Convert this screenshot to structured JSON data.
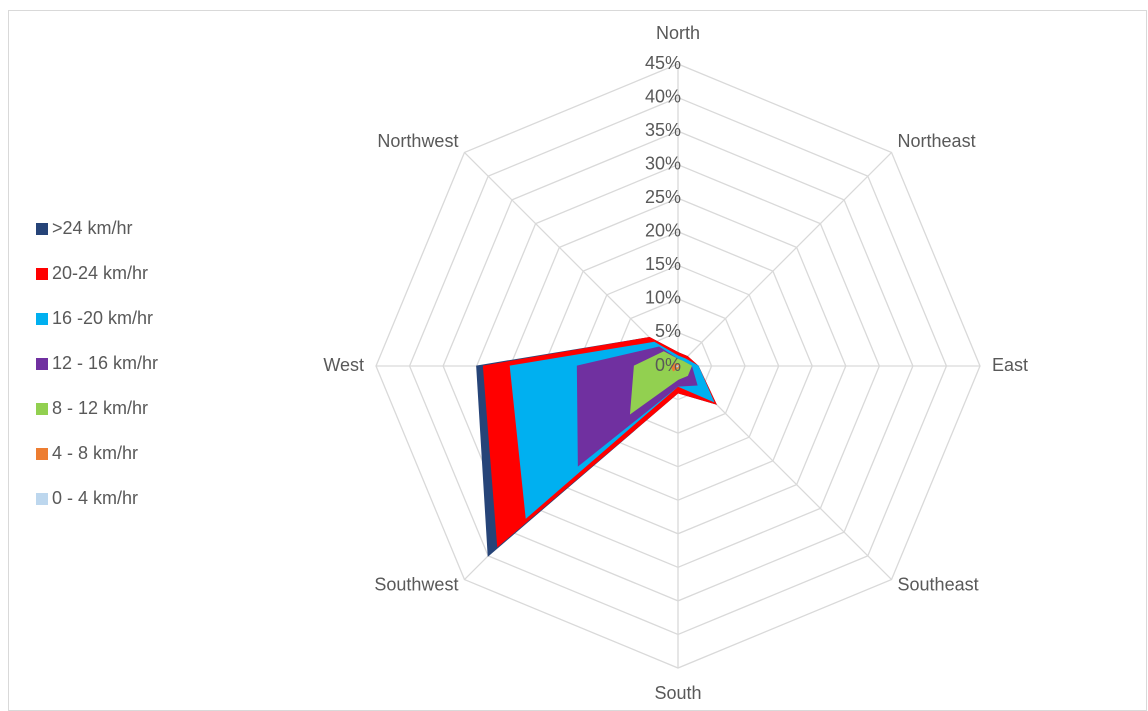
{
  "chart_data": {
    "type": "radar",
    "categories": [
      "North",
      "Northeast",
      "East",
      "Southeast",
      "South",
      "Southwest",
      "West",
      "Northwest"
    ],
    "series": [
      {
        "name": ">24 km/hr",
        "color": "#264478",
        "values": [
          2,
          2,
          3,
          8,
          4,
          40,
          30,
          6
        ]
      },
      {
        "name": "20-24 km/hr",
        "color": "#ff0000",
        "values": [
          2,
          2,
          3,
          8,
          4,
          38,
          29,
          6
        ]
      },
      {
        "name": "16 -20 km/hr",
        "color": "#00b0f0",
        "values": [
          1.5,
          1.5,
          3,
          7.5,
          3,
          32,
          25,
          5
        ]
      },
      {
        "name": "12 - 16 km/hr",
        "color": "#7030a0",
        "values": [
          1,
          1,
          2,
          4,
          3,
          21,
          15,
          4
        ]
      },
      {
        "name": "8 - 12 km/hr",
        "color": "#92d050",
        "values": [
          1,
          1,
          2,
          2,
          2,
          10,
          6.5,
          3
        ]
      },
      {
        "name": "4 - 8 km/hr",
        "color": "#ed7d31",
        "values": [
          0.3,
          0.3,
          0.3,
          0.3,
          0.3,
          1,
          1,
          0.5
        ]
      },
      {
        "name": "0 - 4 km/hr",
        "color": "#bdd7ee",
        "values": [
          0,
          0,
          0,
          0,
          0,
          0.2,
          0.2,
          0
        ]
      }
    ],
    "ylim": [
      0,
      45
    ],
    "yticks": [
      {
        "value": 0,
        "label": "0%"
      },
      {
        "value": 5,
        "label": "5%"
      },
      {
        "value": 10,
        "label": "10%"
      },
      {
        "value": 15,
        "label": "15%"
      },
      {
        "value": 20,
        "label": "20%"
      },
      {
        "value": 25,
        "label": "25%"
      },
      {
        "value": 30,
        "label": "30%"
      },
      {
        "value": 35,
        "label": "35%"
      },
      {
        "value": 40,
        "label": "40%"
      },
      {
        "value": 45,
        "label": "45%"
      }
    ],
    "grid": true,
    "legend": "left"
  }
}
